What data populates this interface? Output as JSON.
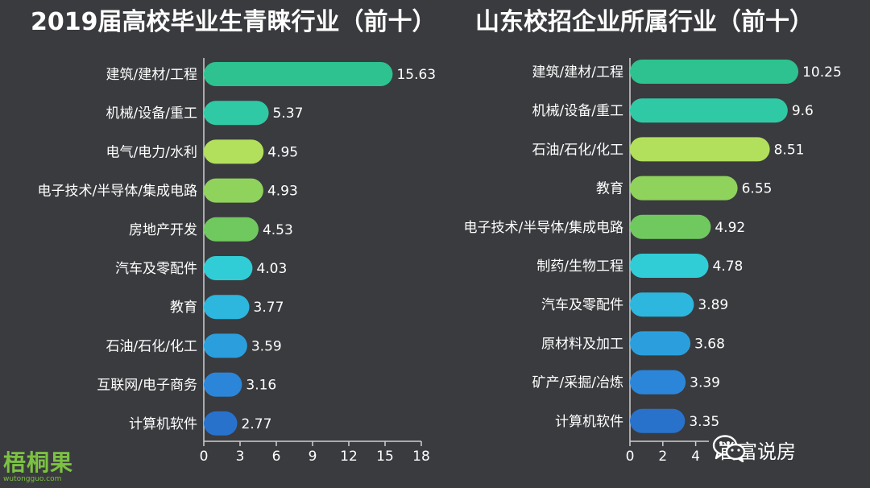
{
  "chart_data": [
    {
      "type": "bar",
      "orientation": "horizontal",
      "title": "2019届高校毕业生青睐行业（前十）",
      "categories": [
        "建筑/建材/工程",
        "机械/设备/重工",
        "电气/电力/水利",
        "电子技术/半导体/集成电路",
        "房地产开发",
        "汽车及零配件",
        "教育",
        "石油/石化/化工",
        "互联网/电子商务",
        "计算机软件"
      ],
      "values": [
        15.63,
        5.37,
        4.95,
        4.93,
        4.53,
        4.03,
        3.77,
        3.59,
        3.16,
        2.77
      ],
      "value_labels": [
        "15.63",
        "5.37",
        "4.95",
        "4.93",
        "4.53",
        "4.03",
        "3.77",
        "3.59",
        "3.16",
        "2.77"
      ],
      "xlim": [
        0,
        18
      ],
      "xticks": [
        0,
        3,
        6,
        9,
        12,
        15,
        18
      ],
      "colors": [
        "#2dc28f",
        "#30c9a6",
        "#b2e05c",
        "#8fd35c",
        "#70c95e",
        "#30cdd6",
        "#2db6de",
        "#2b9fde",
        "#2b86da",
        "#2872cc"
      ],
      "legend": "none",
      "grid": false
    },
    {
      "type": "bar",
      "orientation": "horizontal",
      "title": "山东校招企业所属行业（前十）",
      "categories": [
        "建筑/建材/工程",
        "机械/设备/重工",
        "石油/石化/化工",
        "教育",
        "电子技术/半导体/集成电路",
        "制药/生物工程",
        "汽车及零配件",
        "原材料及加工",
        "矿产/采掘/冶炼",
        "计算机软件"
      ],
      "values": [
        10.25,
        9.6,
        8.51,
        6.55,
        4.92,
        4.78,
        3.89,
        3.68,
        3.39,
        3.35
      ],
      "value_labels": [
        "10.25",
        "9.6",
        "8.51",
        "6.55",
        "4.92",
        "4.78",
        "3.89",
        "3.68",
        "3.39",
        "3.35"
      ],
      "xlim": [
        0,
        12
      ],
      "xticks": [
        0,
        2,
        4
      ],
      "colors": [
        "#2dc28f",
        "#30c9a6",
        "#b2e05c",
        "#8fd35c",
        "#70c95e",
        "#30cdd6",
        "#2db6de",
        "#2b9fde",
        "#2b86da",
        "#2872cc"
      ],
      "legend": "none",
      "grid": false
    }
  ],
  "watermark": {
    "logo_text": "梧桐果",
    "logo_url": "wutongguo.com",
    "wechat_name": "首富说房",
    "wechat_icon": "wechat-icon"
  }
}
